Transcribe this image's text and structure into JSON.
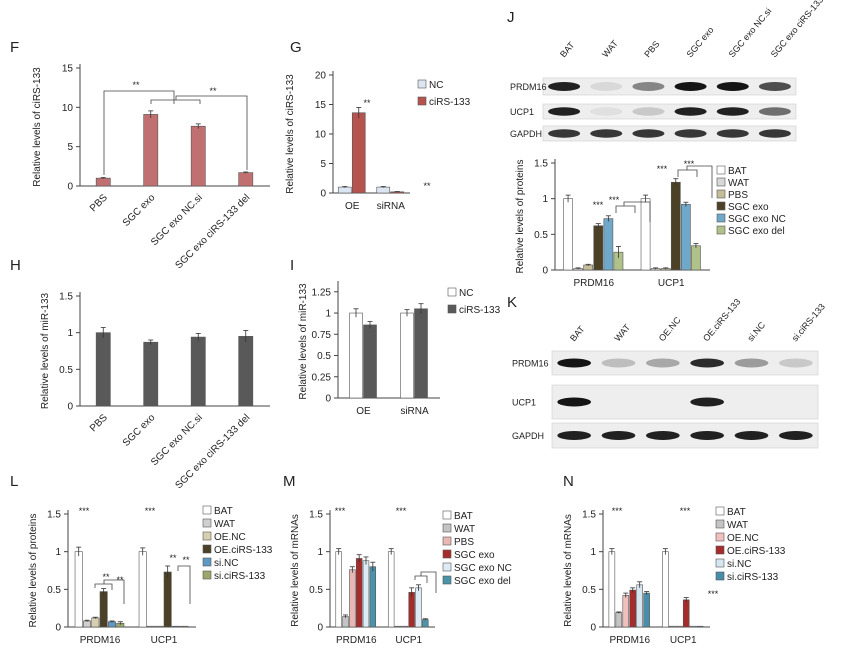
{
  "figure_letters": [
    "F",
    "G",
    "H",
    "I",
    "J",
    "K",
    "L",
    "M",
    "N"
  ],
  "chart_data": [
    {
      "panel": "F",
      "type": "bar",
      "ylabel": "Relative levels of ciRS-133",
      "yticks": [
        0,
        5,
        10,
        15
      ],
      "ylim": [
        0,
        15
      ],
      "categories": [
        "PBS",
        "SGC exo",
        "SGC exo NC.si",
        "SGC exo ciRS-133 del"
      ],
      "series": [
        {
          "values": [
            1.0,
            9.1,
            7.6,
            1.7
          ],
          "errors": [
            0.08,
            0.45,
            0.3,
            0.08
          ]
        }
      ],
      "annotations": [
        "**",
        "**"
      ],
      "colors": {
        "bar": "#c07070"
      }
    },
    {
      "panel": "G",
      "type": "bar",
      "ylabel": "Relative levels of ciRS-133",
      "yticks": [
        0,
        5,
        10,
        15,
        20
      ],
      "ylim": [
        0,
        20
      ],
      "categories": [
        "OE",
        "siRNA"
      ],
      "series": [
        {
          "name": "NC",
          "values": [
            1.0,
            1.0
          ],
          "errors": [
            0.1,
            0.1
          ]
        },
        {
          "name": "ciRS-133",
          "values": [
            13.6,
            0.2
          ],
          "errors": [
            0.9,
            0.05
          ]
        }
      ],
      "annotations": [
        "**",
        "**"
      ],
      "colors": {
        "NC": "#dbe6f2",
        "ciRS-133": "#b5534e"
      }
    },
    {
      "panel": "H",
      "type": "bar",
      "ylabel": "Relative levels of miR-133",
      "yticks": [
        0,
        0.5,
        1,
        1.5
      ],
      "ylim": [
        0,
        1.5
      ],
      "categories": [
        "PBS",
        "SGC exo",
        "SGC exo NC.si",
        "SGC exo ciRS-133 del"
      ],
      "series": [
        {
          "values": [
            1.0,
            0.87,
            0.94,
            0.95
          ],
          "errors": [
            0.07,
            0.03,
            0.05,
            0.08
          ]
        }
      ],
      "colors": {
        "bar": "#595959"
      }
    },
    {
      "panel": "I",
      "type": "bar",
      "ylabel": "Relative levels of miR-133",
      "yticks": [
        0,
        0.25,
        0.5,
        0.75,
        1,
        1.25
      ],
      "ylim": [
        0,
        1.33
      ],
      "categories": [
        "OE",
        "siRNA"
      ],
      "series": [
        {
          "name": "NC",
          "values": [
            1.0,
            1.0
          ],
          "errors": [
            0.05,
            0.04
          ]
        },
        {
          "name": "ciRS-133",
          "values": [
            0.86,
            1.05
          ],
          "errors": [
            0.04,
            0.06
          ]
        }
      ],
      "colors": {
        "NC": "#ffffff",
        "ciRS-133": "#595959"
      }
    },
    {
      "panel": "J",
      "type": "bar",
      "ylabel": "Relative levels of proteins",
      "yticks": [
        0,
        0.5,
        1,
        1.5
      ],
      "ylim": [
        0,
        1.5
      ],
      "categories": [
        "PRDM16",
        "UCP1"
      ],
      "series": [
        {
          "name": "BAT",
          "values": [
            1.0,
            1.0
          ],
          "errors": [
            0.05,
            0.05
          ]
        },
        {
          "name": "WAT",
          "values": [
            0.02,
            0.02
          ],
          "errors": [
            0.01,
            0.01
          ]
        },
        {
          "name": "PBS",
          "values": [
            0.07,
            0.02
          ],
          "errors": [
            0.01,
            0.01
          ]
        },
        {
          "name": "SGC exo",
          "values": [
            0.62,
            1.23
          ],
          "errors": [
            0.03,
            0.05
          ]
        },
        {
          "name": "SGC exo NC",
          "values": [
            0.72,
            0.92
          ],
          "errors": [
            0.04,
            0.03
          ]
        },
        {
          "name": "SGC exo del",
          "values": [
            0.25,
            0.34
          ],
          "errors": [
            0.08,
            0.03
          ]
        }
      ],
      "annotations": [
        "***",
        "***",
        "***",
        "***"
      ],
      "colors": {
        "BAT": "#ffffff",
        "WAT": "#d8d8d8",
        "PBS": "#c4bd97",
        "SGC exo": "#4a4126",
        "SGC exo NC": "#6fa8c8",
        "SGC exo del": "#b0c28a"
      }
    },
    {
      "panel": "L",
      "type": "bar",
      "ylabel": "Relative levels of proteins",
      "yticks": [
        0,
        0.5,
        1,
        1.5
      ],
      "ylim": [
        0,
        1.5
      ],
      "categories": [
        "PRDM16",
        "UCP1"
      ],
      "series": [
        {
          "name": "BAT",
          "values": [
            1.0,
            1.0
          ],
          "errors": [
            0.06,
            0.05
          ]
        },
        {
          "name": "WAT",
          "values": [
            0.08,
            0.0
          ],
          "errors": [
            0.01,
            0.0
          ]
        },
        {
          "name": "OE.NC",
          "values": [
            0.12,
            0.0
          ],
          "errors": [
            0.01,
            0.0
          ]
        },
        {
          "name": "OE.ciRS-133",
          "values": [
            0.47,
            0.73
          ],
          "errors": [
            0.04,
            0.08
          ]
        },
        {
          "name": "si.NC",
          "values": [
            0.07,
            0.0
          ],
          "errors": [
            0.01,
            0.0
          ]
        },
        {
          "name": "si.ciRS-133",
          "values": [
            0.05,
            0.0
          ],
          "errors": [
            0.02,
            0.0
          ]
        }
      ],
      "annotations": [
        "***",
        "***",
        "**",
        "**",
        "**",
        "**"
      ],
      "colors": {
        "BAT": "#ffffff",
        "WAT": "#d0d0d0",
        "OE.NC": "#d7d0b0",
        "OE.ciRS-133": "#4a4126",
        "si.NC": "#5f98c3",
        "si.ciRS-133": "#9aa86b"
      }
    },
    {
      "panel": "M",
      "type": "bar",
      "ylabel": "Relative levels of mRNAs",
      "yticks": [
        0,
        0.5,
        1,
        1.5
      ],
      "ylim": [
        0,
        1.5
      ],
      "categories": [
        "PRDM16",
        "UCP1"
      ],
      "series": [
        {
          "name": "BAT",
          "values": [
            1.0,
            1.0
          ],
          "errors": [
            0.04,
            0.04
          ]
        },
        {
          "name": "WAT",
          "values": [
            0.14,
            0.01
          ],
          "errors": [
            0.02,
            0.0
          ]
        },
        {
          "name": "PBS",
          "values": [
            0.76,
            0.01
          ],
          "errors": [
            0.04,
            0.0
          ]
        },
        {
          "name": "SGC exo",
          "values": [
            0.91,
            0.46
          ],
          "errors": [
            0.05,
            0.06
          ]
        },
        {
          "name": "SGC exo NC",
          "values": [
            0.88,
            0.52
          ],
          "errors": [
            0.05,
            0.04
          ]
        },
        {
          "name": "SGC exo del",
          "values": [
            0.8,
            0.1
          ],
          "errors": [
            0.06,
            0.01
          ]
        }
      ],
      "annotations": [
        "***",
        "***"
      ],
      "colors": {
        "BAT": "#ffffff",
        "WAT": "#c4c4c4",
        "PBS": "#e9b8b4",
        "SGC exo": "#a62c2b",
        "SGC exo NC": "#dcebf5",
        "SGC exo del": "#4a93a8"
      }
    },
    {
      "panel": "N",
      "type": "bar",
      "ylabel": "Relative levels of mRNAs",
      "yticks": [
        0,
        0.5,
        1,
        1.5
      ],
      "ylim": [
        0,
        1.5
      ],
      "categories": [
        "PRDM16",
        "UCP1"
      ],
      "series": [
        {
          "name": "BAT",
          "values": [
            1.0,
            1.0
          ],
          "errors": [
            0.04,
            0.04
          ]
        },
        {
          "name": "WAT",
          "values": [
            0.19,
            0.0
          ],
          "errors": [
            0.01,
            0.0
          ]
        },
        {
          "name": "OE.NC",
          "values": [
            0.42,
            0.0
          ],
          "errors": [
            0.03,
            0.0
          ]
        },
        {
          "name": "OE.ciRS-133",
          "values": [
            0.49,
            0.36
          ],
          "errors": [
            0.03,
            0.03
          ]
        },
        {
          "name": "si.NC",
          "values": [
            0.56,
            0.0
          ],
          "errors": [
            0.04,
            0.0
          ]
        },
        {
          "name": "si.ciRS-133",
          "values": [
            0.45,
            0.0
          ],
          "errors": [
            0.02,
            0.0
          ]
        }
      ],
      "annotations": [
        "***",
        "***",
        "***"
      ],
      "colors": {
        "BAT": "#ffffff",
        "WAT": "#c4c4c4",
        "OE.NC": "#f2c0bc",
        "OE.ciRS-133": "#a62c2b",
        "si.NC": "#d5e6f0",
        "si.ciRS-133": "#4a8da8"
      }
    }
  ],
  "western_blots": [
    {
      "panel": "J",
      "lanes": [
        "BAT",
        "WAT",
        "PBS",
        "SGC exo",
        "SGC exo NC.si",
        "SGC exo ciRS-133 del"
      ],
      "rows": [
        {
          "label": "PRDM16",
          "intensity": [
            0.9,
            0.08,
            0.45,
            0.95,
            0.95,
            0.7
          ]
        },
        {
          "label": "UCP1",
          "intensity": [
            0.9,
            0.05,
            0.15,
            0.9,
            0.9,
            0.55
          ]
        },
        {
          "label": "GAPDH",
          "intensity": [
            0.8,
            0.8,
            0.8,
            0.8,
            0.8,
            0.8
          ]
        }
      ]
    },
    {
      "panel": "K",
      "lanes": [
        "BAT",
        "WAT",
        "OE.NC",
        "OE.ciRS-133",
        "si.NC",
        "si.ciRS-133"
      ],
      "rows": [
        {
          "label": "PRDM16",
          "intensity": [
            0.95,
            0.2,
            0.3,
            0.85,
            0.35,
            0.15
          ]
        },
        {
          "label": "UCP1",
          "intensity": [
            0.95,
            0.0,
            0.0,
            0.9,
            0.0,
            0.0
          ]
        },
        {
          "label": "GAPDH",
          "intensity": [
            0.9,
            0.9,
            0.9,
            0.9,
            0.9,
            0.9
          ]
        }
      ]
    }
  ]
}
